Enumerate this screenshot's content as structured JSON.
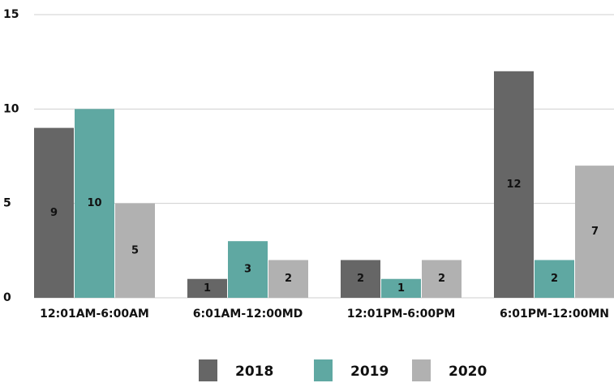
{
  "chart_data": {
    "type": "bar",
    "categories": [
      "12:01AM-6:00AM",
      "6:01AM-12:00MD",
      "12:01PM-6:00PM",
      "6:01PM-12:00MN"
    ],
    "series": [
      {
        "name": "2018",
        "color": "#666666",
        "values": [
          9,
          1,
          2,
          12
        ]
      },
      {
        "name": "2019",
        "color": "#5fa8a2",
        "values": [
          10,
          3,
          1,
          2
        ]
      },
      {
        "name": "2020",
        "color": "#b1b1b1",
        "values": [
          5,
          2,
          2,
          7
        ]
      }
    ],
    "ylim": [
      0,
      15
    ],
    "yticks": [
      0,
      5,
      10,
      15
    ],
    "grid": true,
    "legend": "bottom"
  }
}
